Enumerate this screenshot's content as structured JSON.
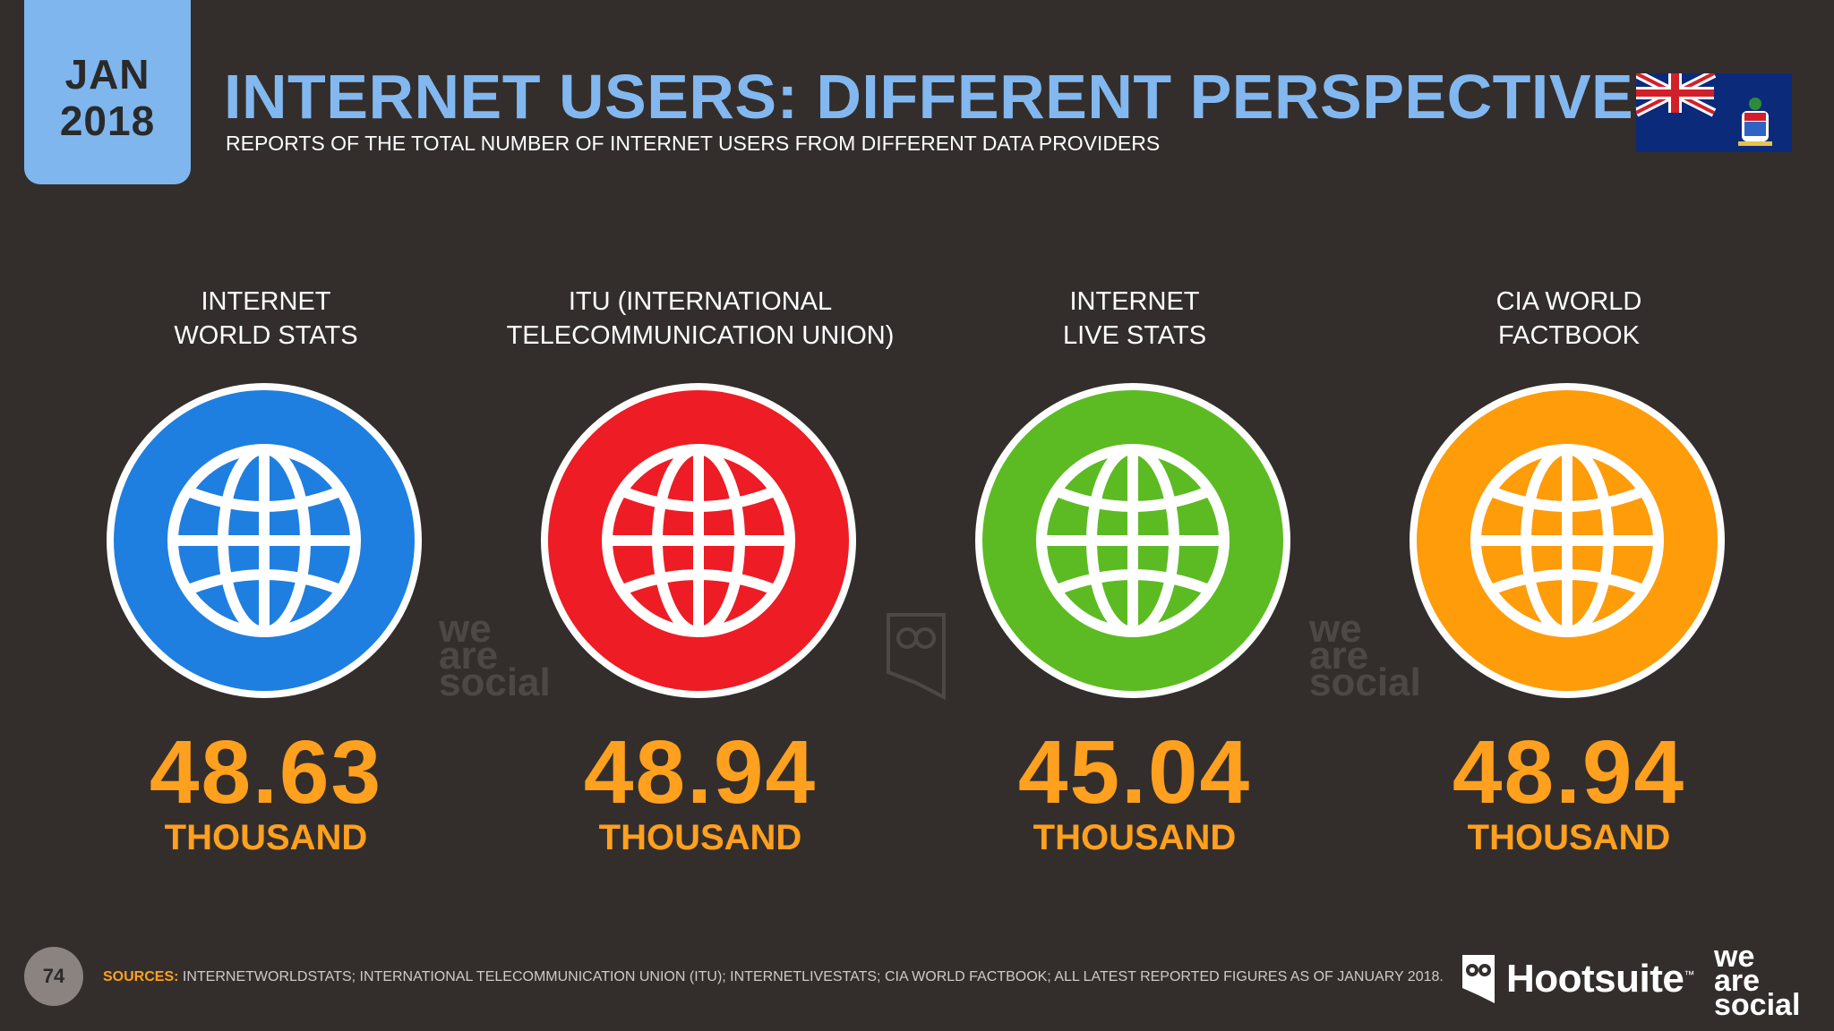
{
  "header": {
    "date_month": "JAN",
    "date_year": "2018",
    "title": "INTERNET USERS: DIFFERENT PERSPECTIVES",
    "subtitle": "REPORTS OF THE TOTAL NUMBER OF INTERNET USERS FROM DIFFERENT DATA PROVIDERS",
    "flag_icon": "cayman-islands-flag-icon"
  },
  "cards": [
    {
      "label_line1": "INTERNET",
      "label_line2": "WORLD STATS",
      "value": "48.63",
      "unit": "THOUSAND",
      "color": "#1e7fe0",
      "icon": "globe-icon"
    },
    {
      "label_line1": "ITU (INTERNATIONAL",
      "label_line2": "TELECOMMUNICATION UNION)",
      "value": "48.94",
      "unit": "THOUSAND",
      "color": "#ee1c24",
      "icon": "globe-icon"
    },
    {
      "label_line1": "INTERNET",
      "label_line2": "LIVE STATS",
      "value": "45.04",
      "unit": "THOUSAND",
      "color": "#5cbb22",
      "icon": "globe-icon"
    },
    {
      "label_line1": "CIA WORLD",
      "label_line2": "FACTBOOK",
      "value": "48.94",
      "unit": "THOUSAND",
      "color": "#ff9c0a",
      "icon": "globe-icon"
    }
  ],
  "watermarks": {
    "we": "we",
    "are": "are",
    "social": "social"
  },
  "footer": {
    "page_number": "74",
    "sources_label": "SOURCES:",
    "sources_text": "INTERNETWORLDSTATS; INTERNATIONAL TELECOMMUNICATION UNION (ITU); INTERNETLIVESTATS; CIA WORLD FACTBOOK; ALL LATEST REPORTED FIGURES AS OF JANUARY 2018.",
    "brand_hootsuite": "Hootsuite",
    "brand_tm": "™",
    "brand_we": "we",
    "brand_are": "are",
    "brand_social": "social"
  }
}
